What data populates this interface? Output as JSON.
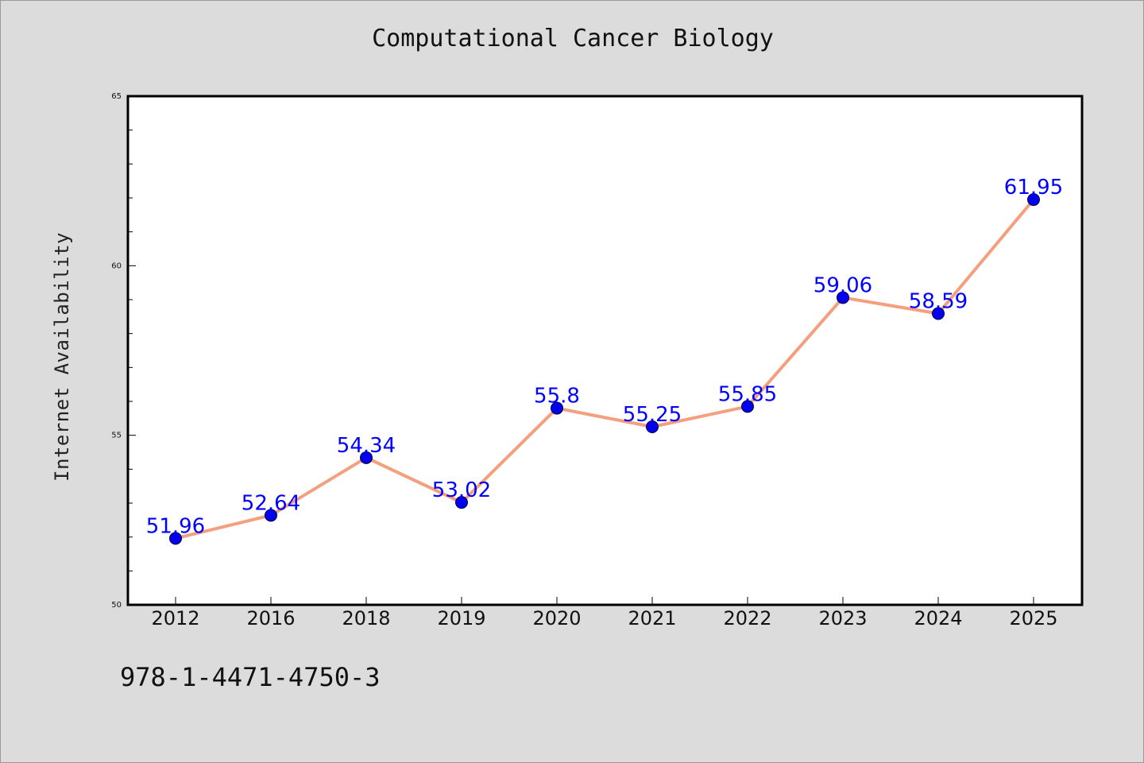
{
  "chart_data": {
    "type": "line",
    "title": "Computational Cancer Biology",
    "xlabel": "",
    "ylabel": "Internet Availability",
    "categories": [
      "2012",
      "2016",
      "2018",
      "2019",
      "2020",
      "2021",
      "2022",
      "2023",
      "2024",
      "2025"
    ],
    "series": [
      {
        "values": [
          51.96,
          52.64,
          54.34,
          53.02,
          55.8,
          55.25,
          55.85,
          59.06,
          58.59,
          61.95
        ],
        "data_labels": [
          "51.96",
          "52.64",
          "54.34",
          "53.02",
          "55.8",
          "55.25",
          "55.85",
          "59.06",
          "58.59",
          "61.95"
        ],
        "line_color": "#f4a07e",
        "marker_color": "#0000ee",
        "label_color": "#0000ff"
      }
    ],
    "ylim": [
      50,
      65
    ],
    "yticks": [
      50,
      55,
      60,
      65
    ],
    "grid": false,
    "legend": "none"
  },
  "footnote": "978-1-4471-4750-3"
}
